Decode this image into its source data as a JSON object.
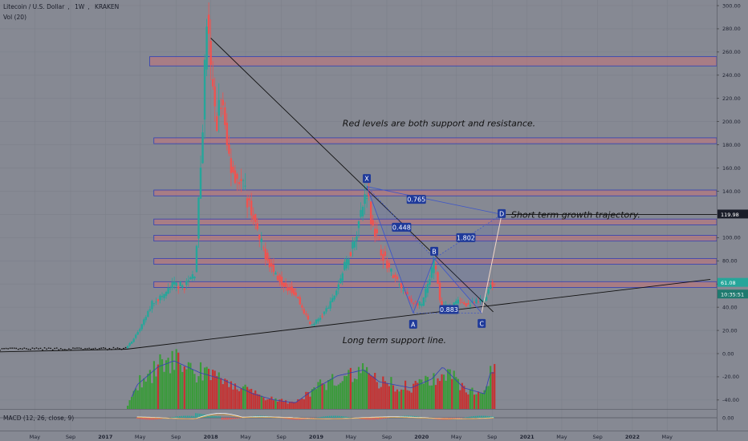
{
  "header": {
    "symbol": "Litecoin / U.S. Dollar",
    "interval": "1W",
    "exchange": "KRAKEN",
    "volume_indicator": "Vol (20)",
    "macd_indicator": "MACD (12, 26, close, 9)"
  },
  "colors": {
    "background": "#868993",
    "up_candle": "#26a69a",
    "down_candle": "#ef5350",
    "volume_up": "#3a9b3a",
    "volume_down": "#c53232",
    "zone_fill": "#c5737a",
    "zone_border": "#2f3fb6",
    "pattern_line": "#3f57c8",
    "label_box": "#1f3a9a",
    "trend_line": "#111111",
    "price_label": "#ffffff"
  },
  "chart_data": {
    "type": "candlestick",
    "y_axis_ticks": [
      "300.00",
      "280.00",
      "260.00",
      "240.00",
      "220.00",
      "200.00",
      "180.00",
      "160.00",
      "140.00",
      "120.00",
      "100.00",
      "80.00",
      "60.00",
      "40.00",
      "20.00",
      "0.00",
      "-20.00",
      "-40.00"
    ],
    "macd_axis_tick": "0.00",
    "ylim": [
      -48,
      305
    ],
    "x_axis_ticks": [
      {
        "label": "May",
        "t": 2016.33
      },
      {
        "label": "Sep",
        "t": 2016.67
      },
      {
        "label": "2017",
        "t": 2017.0,
        "bold": true
      },
      {
        "label": "May",
        "t": 2017.33
      },
      {
        "label": "Sep",
        "t": 2017.67
      },
      {
        "label": "2018",
        "t": 2018.0,
        "bold": true
      },
      {
        "label": "May",
        "t": 2018.33
      },
      {
        "label": "Sep",
        "t": 2018.67
      },
      {
        "label": "2019",
        "t": 2019.0,
        "bold": true
      },
      {
        "label": "May",
        "t": 2019.33
      },
      {
        "label": "Sep",
        "t": 2019.67
      },
      {
        "label": "2020",
        "t": 2020.0,
        "bold": true
      },
      {
        "label": "May",
        "t": 2020.33
      },
      {
        "label": "Sep",
        "t": 2020.67
      },
      {
        "label": "2021",
        "t": 2021.0,
        "bold": true
      },
      {
        "label": "May",
        "t": 2021.33
      },
      {
        "label": "Sep",
        "t": 2021.67
      },
      {
        "label": "2022",
        "t": 2022.0,
        "bold": true
      },
      {
        "label": "May",
        "t": 2022.33
      }
    ],
    "price_path": [
      [
        2016.0,
        3.8
      ],
      [
        2016.5,
        4.0
      ],
      [
        2016.9,
        4.0
      ],
      [
        2017.18,
        4.3
      ],
      [
        2017.25,
        10
      ],
      [
        2017.35,
        25
      ],
      [
        2017.45,
        45
      ],
      [
        2017.55,
        50
      ],
      [
        2017.65,
        60
      ],
      [
        2017.75,
        58
      ],
      [
        2017.85,
        70
      ],
      [
        2017.92,
        190
      ],
      [
        2017.96,
        290
      ],
      [
        2018.0,
        240
      ],
      [
        2018.05,
        200
      ],
      [
        2018.1,
        220
      ],
      [
        2018.15,
        180
      ],
      [
        2018.2,
        160
      ],
      [
        2018.3,
        145
      ],
      [
        2018.4,
        120
      ],
      [
        2018.45,
        100
      ],
      [
        2018.55,
        80
      ],
      [
        2018.6,
        70
      ],
      [
        2018.7,
        60
      ],
      [
        2018.8,
        52
      ],
      [
        2018.9,
        33
      ],
      [
        2018.95,
        24
      ],
      [
        2019.05,
        32
      ],
      [
        2019.15,
        45
      ],
      [
        2019.25,
        70
      ],
      [
        2019.35,
        95
      ],
      [
        2019.45,
        130
      ],
      [
        2019.48,
        143
      ],
      [
        2019.52,
        118
      ],
      [
        2019.6,
        92
      ],
      [
        2019.7,
        72
      ],
      [
        2019.8,
        57
      ],
      [
        2019.9,
        45
      ],
      [
        2020.0,
        42
      ],
      [
        2020.08,
        65
      ],
      [
        2020.12,
        80
      ],
      [
        2020.18,
        42
      ],
      [
        2020.25,
        40
      ],
      [
        2020.35,
        45
      ],
      [
        2020.45,
        42
      ],
      [
        2020.55,
        45
      ],
      [
        2020.6,
        47
      ],
      [
        2020.65,
        60
      ]
    ],
    "volume_profile": [
      [
        2016.0,
        0
      ],
      [
        2017.2,
        0
      ],
      [
        2017.3,
        0.4
      ],
      [
        2017.5,
        0.7
      ],
      [
        2017.65,
        0.8
      ],
      [
        2017.9,
        0.6
      ],
      [
        2018.1,
        0.5
      ],
      [
        2018.4,
        0.25
      ],
      [
        2018.6,
        0.15
      ],
      [
        2018.8,
        0.1
      ],
      [
        2019.0,
        0.35
      ],
      [
        2019.2,
        0.55
      ],
      [
        2019.45,
        0.65
      ],
      [
        2019.6,
        0.45
      ],
      [
        2019.9,
        0.35
      ],
      [
        2020.1,
        0.5
      ],
      [
        2020.2,
        0.7
      ],
      [
        2020.4,
        0.35
      ],
      [
        2020.6,
        0.25
      ],
      [
        2020.65,
        0.6
      ]
    ],
    "levels": [
      {
        "low": 248,
        "high": 256
      },
      {
        "low": 181,
        "high": 186
      },
      {
        "low": 136,
        "high": 141
      },
      {
        "low": 111,
        "high": 116
      },
      {
        "low": 97,
        "high": 102
      },
      {
        "low": 77,
        "high": 82
      },
      {
        "low": 57,
        "high": 62
      }
    ],
    "harmonic_points": [
      {
        "label": "X",
        "t": 2019.48,
        "p": 144
      },
      {
        "label": "A",
        "t": 2019.92,
        "p": 35
      },
      {
        "label": "B",
        "t": 2020.12,
        "p": 82
      },
      {
        "label": "C",
        "t": 2020.57,
        "p": 35
      },
      {
        "label": "D",
        "t": 2020.76,
        "p": 120
      }
    ],
    "ratios": [
      {
        "label": "0.765",
        "t": 2019.95,
        "p": 133
      },
      {
        "label": "0.448",
        "t": 2019.81,
        "p": 109
      },
      {
        "label": "1.802",
        "t": 2020.42,
        "p": 100
      },
      {
        "label": "0.883",
        "t": 2020.26,
        "p": 38
      }
    ],
    "trend_lines": [
      {
        "from": [
          2018.0,
          272
        ],
        "to": [
          2020.68,
          36
        ]
      },
      {
        "from": [
          2016.0,
          1.5
        ],
        "to": [
          2017.2,
          3.8
        ]
      },
      {
        "from": [
          2017.2,
          3.8
        ],
        "to": [
          2022.74,
          64
        ]
      }
    ],
    "annotations": [
      {
        "text": "Red levels are both support and resistance.",
        "t": 2019.25,
        "p": 196
      },
      {
        "text": "Short term growth trajectory.",
        "t": 2020.85,
        "p": 117
      },
      {
        "text": "Long term support line.",
        "t": 2019.25,
        "p": 9
      }
    ],
    "price_labels": [
      {
        "text": "119.98",
        "p": 119.98
      },
      {
        "text": "61.08",
        "p": 61.08
      },
      {
        "text": "10:35:51",
        "p": 51
      }
    ]
  }
}
